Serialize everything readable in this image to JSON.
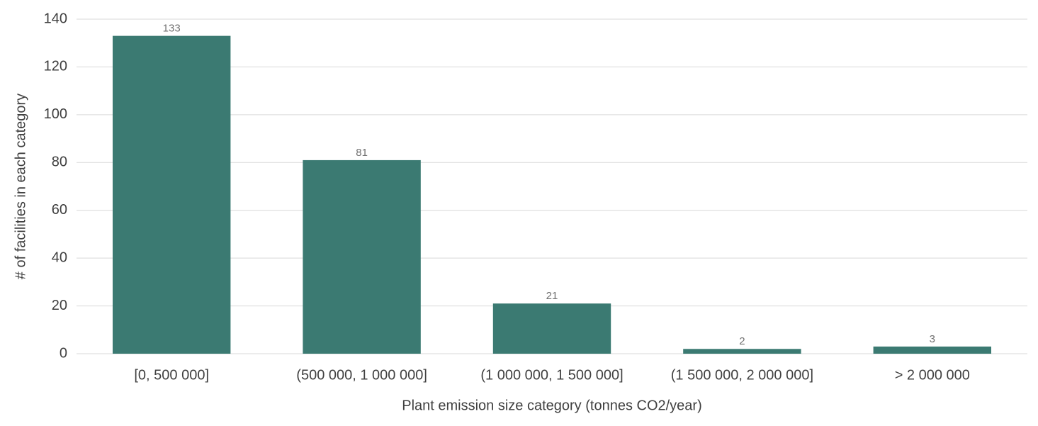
{
  "chart_data": {
    "type": "bar",
    "x_label": "Plant emission size category (tonnes CO2/year)",
    "y_label": "# of facilities in each category",
    "categories": [
      "[0, 500 000]",
      "(500 000, 1 000 000]",
      "(1 000 000, 1 500 000]",
      "(1 500 000, 2 000 000]",
      "> 2 000 000"
    ],
    "values": [
      133,
      81,
      21,
      2,
      3
    ],
    "color": "#3b7a72",
    "ylim": [
      0,
      140
    ],
    "yticks": [
      0,
      20,
      40,
      60,
      80,
      100,
      120,
      140
    ],
    "grid": true
  }
}
